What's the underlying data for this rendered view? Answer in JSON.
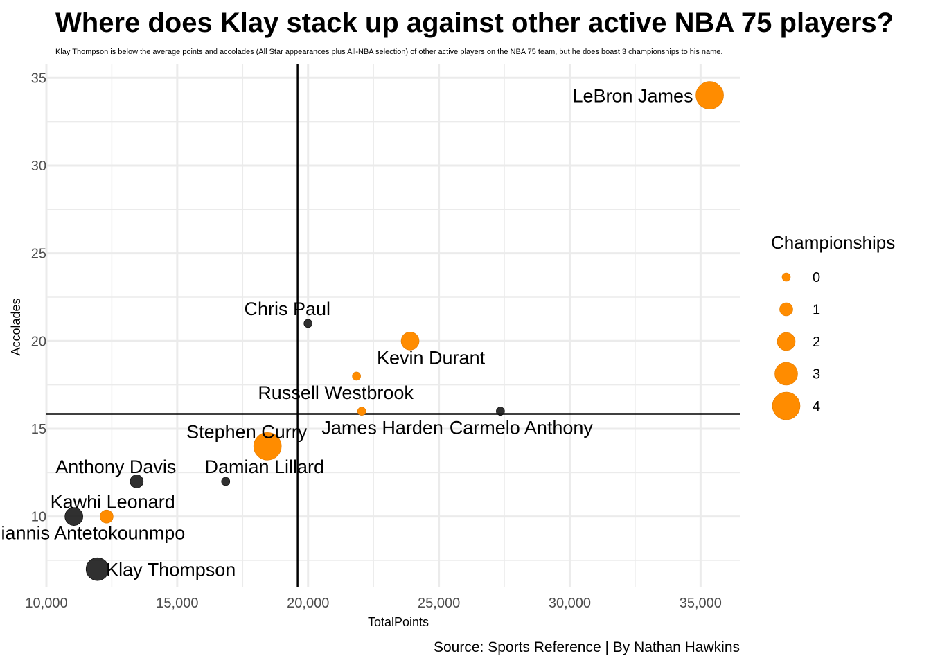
{
  "chart_data": {
    "type": "scatter",
    "title": "Where does Klay stack up against other active NBA 75 players?",
    "subtitle": "Klay Thompson is below the average points and accolades (All Star appearances plus All-NBA selection) of other active players on the NBA 75 team, but he does boast 3 championships to his name.",
    "xlabel": "TotalPoints",
    "ylabel": "Accolades",
    "caption": "Source: Sports Reference | By Nathan Hawkins",
    "xlim": [
      10000,
      36500
    ],
    "ylim": [
      6,
      35.8
    ],
    "x_ticks": [
      10000,
      15000,
      20000,
      25000,
      30000,
      35000
    ],
    "x_tick_labels": [
      "10,000",
      "15,000",
      "20,000",
      "25,000",
      "30,000",
      "35,000"
    ],
    "y_ticks": [
      10,
      15,
      20,
      25,
      30,
      35
    ],
    "y_tick_labels": [
      "10",
      "15",
      "20",
      "25",
      "30",
      "35"
    ],
    "grid": true,
    "reference_lines": {
      "x_mean": 19600,
      "y_mean": 15.85
    },
    "colors": {
      "highlighted": "#ff8c00",
      "other": "#1a1a1a",
      "grid": "#ebebeb",
      "tick_text": "#4d4d4d"
    },
    "legend": {
      "title": "Championships",
      "position": "right",
      "entries": [
        {
          "label": "0",
          "value": 0
        },
        {
          "label": "1",
          "value": 1
        },
        {
          "label": "2",
          "value": 2
        },
        {
          "label": "3",
          "value": 3
        },
        {
          "label": "4",
          "value": 4
        }
      ]
    },
    "points": [
      {
        "name": "LeBron James",
        "x": 35350,
        "y": 34,
        "championships": 4,
        "highlight": true,
        "label_pos": "left"
      },
      {
        "name": "Chris Paul",
        "x": 20000,
        "y": 21,
        "championships": 0,
        "highlight": false,
        "label_pos": "above-left"
      },
      {
        "name": "Kevin Durant",
        "x": 23900,
        "y": 20,
        "championships": 2,
        "highlight": true,
        "label_pos": "below-right"
      },
      {
        "name": "Russell Westbrook",
        "x": 21850,
        "y": 18,
        "championships": 0,
        "highlight": true,
        "label_pos": "below-left"
      },
      {
        "name": "James Harden",
        "x": 22050,
        "y": 16,
        "championships": 0,
        "highlight": true,
        "label_pos": "below-right"
      },
      {
        "name": "Carmelo Anthony",
        "x": 27350,
        "y": 16,
        "championships": 0,
        "highlight": false,
        "label_pos": "below-right"
      },
      {
        "name": "Stephen Curry",
        "x": 18450,
        "y": 14,
        "championships": 4,
        "highlight": true,
        "label_pos": "above-left"
      },
      {
        "name": "Anthony Davis",
        "x": 13450,
        "y": 12,
        "championships": 1,
        "highlight": false,
        "label_pos": "above-left"
      },
      {
        "name": "Damian Lillard",
        "x": 16850,
        "y": 12,
        "championships": 0,
        "highlight": false,
        "label_pos": "above-right"
      },
      {
        "name": "Kawhi Leonard",
        "x": 11050,
        "y": 10,
        "championships": 2,
        "highlight": false,
        "label_pos": "above-right"
      },
      {
        "name": "Giannis Antetokounmpo",
        "x": 12300,
        "y": 10,
        "championships": 1,
        "highlight": true,
        "label_pos": "below-left"
      },
      {
        "name": "Klay Thompson",
        "x": 11950,
        "y": 7,
        "championships": 3,
        "highlight": false,
        "label_pos": "right"
      }
    ]
  }
}
